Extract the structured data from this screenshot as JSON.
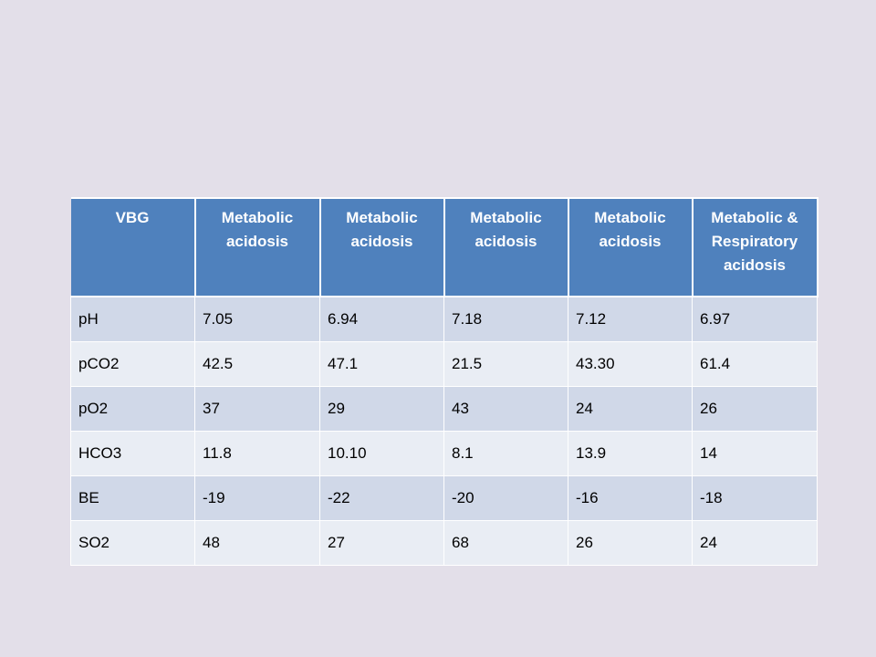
{
  "table": {
    "headers": [
      "VBG",
      "Metabolic acidosis",
      "Metabolic acidosis",
      "Metabolic acidosis",
      "Metabolic acidosis",
      "Metabolic & Respiratory acidosis"
    ],
    "rows": [
      [
        "pH",
        "7.05",
        "6.94",
        "7.18",
        "7.12",
        "6.97"
      ],
      [
        "pCO2",
        "42.5",
        "47.1",
        "21.5",
        "43.30",
        "61.4"
      ],
      [
        "pO2",
        "37",
        "29",
        "43",
        "24",
        "26"
      ],
      [
        "HCO3",
        "11.8",
        "10.10",
        "8.1",
        "13.9",
        "14"
      ],
      [
        "BE",
        "-19",
        "-22",
        "-20",
        "-16",
        "-18"
      ],
      [
        "SO2",
        "48",
        "27",
        "68",
        "26",
        "24"
      ]
    ]
  },
  "colors": {
    "background": "#e3dfe9",
    "header_fill": "#4f81bd",
    "row_band_dark": "#d0d8e8",
    "row_band_light": "#e9edf4"
  }
}
